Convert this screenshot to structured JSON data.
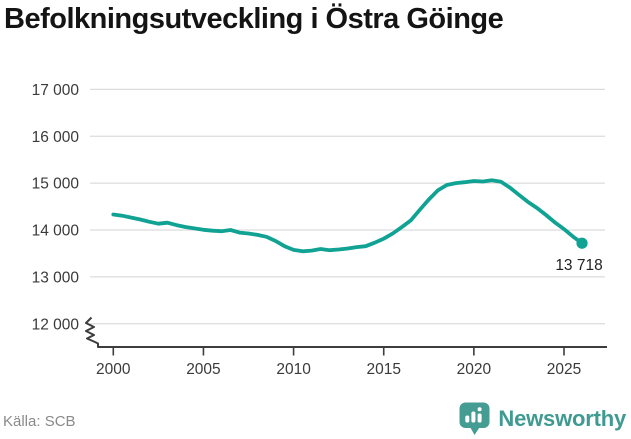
{
  "header": {
    "title": "Befolkningsutveckling i Östra Göinge"
  },
  "footer": {
    "source": "Källa: SCB",
    "brand": "Newsworthy",
    "logo_icon": "bar-chart-speech-bubble-icon"
  },
  "colors": {
    "line": "#10a293",
    "grid": "#dcdcdc",
    "axis": "#3d3d3d",
    "tick_text": "#3a3a3a",
    "end_label_text": "#222222",
    "muted_text": "#8a8a8a",
    "brand_teal": "#3f9a92",
    "logo_bg": "#459c93"
  },
  "chart_data": {
    "type": "line",
    "title": "Befolkningsutveckling i Östra Göinge",
    "grid": true,
    "legend": "none",
    "axis_break": true,
    "ylim": [
      12000,
      17000
    ],
    "y_ticks": [
      12000,
      13000,
      14000,
      15000,
      16000,
      17000
    ],
    "y_tick_labels": [
      "12 000",
      "13 000",
      "14 000",
      "15 000",
      "16 000",
      "17 000"
    ],
    "x_ticks": [
      2000,
      2005,
      2010,
      2015,
      2020,
      2025
    ],
    "x_tick_labels": [
      "2000",
      "2005",
      "2010",
      "2015",
      "2020",
      "2025"
    ],
    "end_label": "13 718",
    "end_value": 13718,
    "x": [
      2000.0,
      2000.5,
      2001.0,
      2001.5,
      2002.0,
      2002.5,
      2003.0,
      2003.5,
      2004.0,
      2004.5,
      2005.0,
      2005.5,
      2006.0,
      2006.5,
      2007.0,
      2007.5,
      2008.0,
      2008.5,
      2009.0,
      2009.5,
      2010.0,
      2010.5,
      2011.0,
      2011.5,
      2012.0,
      2012.5,
      2013.0,
      2013.5,
      2014.0,
      2014.5,
      2015.0,
      2015.5,
      2016.0,
      2016.5,
      2017.0,
      2017.5,
      2018.0,
      2018.5,
      2019.0,
      2019.5,
      2020.0,
      2020.5,
      2021.0,
      2021.5,
      2022.0,
      2022.5,
      2023.0,
      2023.5,
      2024.0,
      2024.5,
      2025.0,
      2025.5,
      2026.0
    ],
    "values": [
      14330,
      14305,
      14265,
      14225,
      14175,
      14135,
      14155,
      14105,
      14065,
      14035,
      14005,
      13985,
      13975,
      14000,
      13945,
      13925,
      13895,
      13855,
      13765,
      13655,
      13575,
      13545,
      13560,
      13595,
      13570,
      13585,
      13605,
      13635,
      13655,
      13730,
      13815,
      13925,
      14060,
      14205,
      14430,
      14650,
      14845,
      14960,
      15000,
      15020,
      15045,
      15035,
      15060,
      15030,
      14905,
      14750,
      14600,
      14470,
      14320,
      14160,
      14020,
      13860,
      13718
    ]
  }
}
